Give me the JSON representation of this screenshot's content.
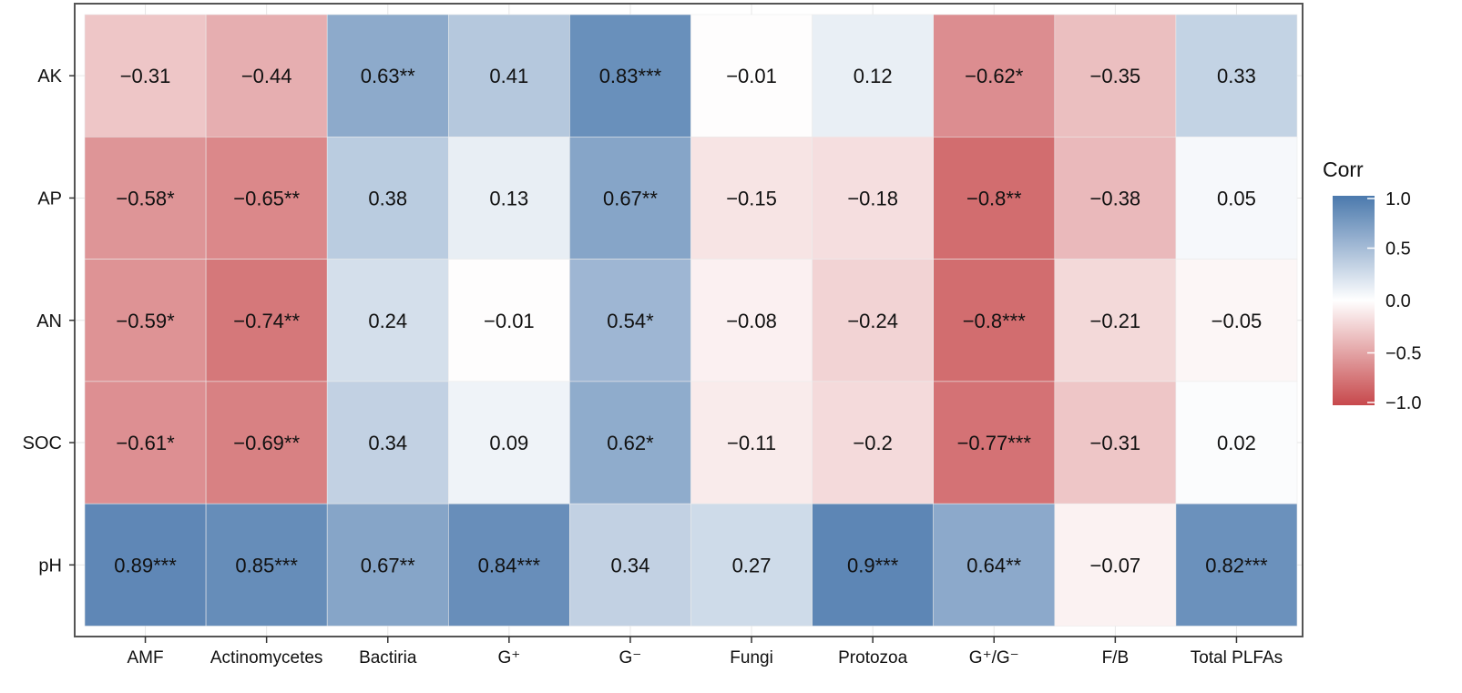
{
  "chart_data": {
    "type": "heatmap",
    "title": "",
    "xlabel": "",
    "ylabel": "",
    "columns": [
      "AMF",
      "Actinomycetes",
      "Bactiria",
      "G⁺",
      "G⁻",
      "Fungi",
      "Protozoa",
      "G⁺/G⁻",
      "F/B",
      "Total PLFAs"
    ],
    "rows": [
      "AK",
      "AP",
      "AN",
      "SOC",
      "pH"
    ],
    "values": [
      [
        -0.31,
        -0.44,
        0.63,
        0.41,
        0.83,
        -0.01,
        0.12,
        -0.62,
        -0.35,
        0.33
      ],
      [
        -0.58,
        -0.65,
        0.38,
        0.13,
        0.67,
        -0.15,
        -0.18,
        -0.8,
        -0.38,
        0.05
      ],
      [
        -0.59,
        -0.74,
        0.24,
        -0.01,
        0.54,
        -0.08,
        -0.24,
        -0.8,
        -0.21,
        -0.05
      ],
      [
        -0.61,
        -0.69,
        0.34,
        0.09,
        0.62,
        -0.11,
        -0.2,
        -0.77,
        -0.31,
        0.02
      ],
      [
        0.89,
        0.85,
        0.67,
        0.84,
        0.34,
        0.27,
        0.9,
        0.64,
        -0.07,
        0.82
      ]
    ],
    "labels": [
      [
        "−0.31",
        "−0.44",
        "0.63**",
        "0.41",
        "0.83***",
        "−0.01",
        "0.12",
        "−0.62*",
        "−0.35",
        "0.33"
      ],
      [
        "−0.58*",
        "−0.65**",
        "0.38",
        "0.13",
        "0.67**",
        "−0.15",
        "−0.18",
        "−0.8**",
        "−0.38",
        "0.05"
      ],
      [
        "−0.59*",
        "−0.74**",
        "0.24",
        "−0.01",
        "0.54*",
        "−0.08",
        "−0.24",
        "−0.8***",
        "−0.21",
        "−0.05"
      ],
      [
        "−0.61*",
        "−0.69**",
        "0.34",
        "0.09",
        "0.62*",
        "−0.11",
        "−0.2",
        "−0.77***",
        "−0.31",
        "0.02"
      ],
      [
        "0.89***",
        "0.85***",
        "0.67**",
        "0.84***",
        "0.34",
        "0.27",
        "0.9***",
        "0.64**",
        "−0.07",
        "0.82***"
      ]
    ],
    "legend": {
      "title": "Corr",
      "ticks": [
        "1.0",
        "0.5",
        "0.0",
        "−0.5",
        "−1.0"
      ],
      "tick_values": [
        1.0,
        0.5,
        0.0,
        -0.5,
        -1.0
      ],
      "range": [
        -1.0,
        1.0
      ],
      "placement": "right"
    },
    "colors": {
      "high": "#3b6da6",
      "mid": "#ffffff",
      "low": "#c2383c"
    },
    "grid": true
  }
}
